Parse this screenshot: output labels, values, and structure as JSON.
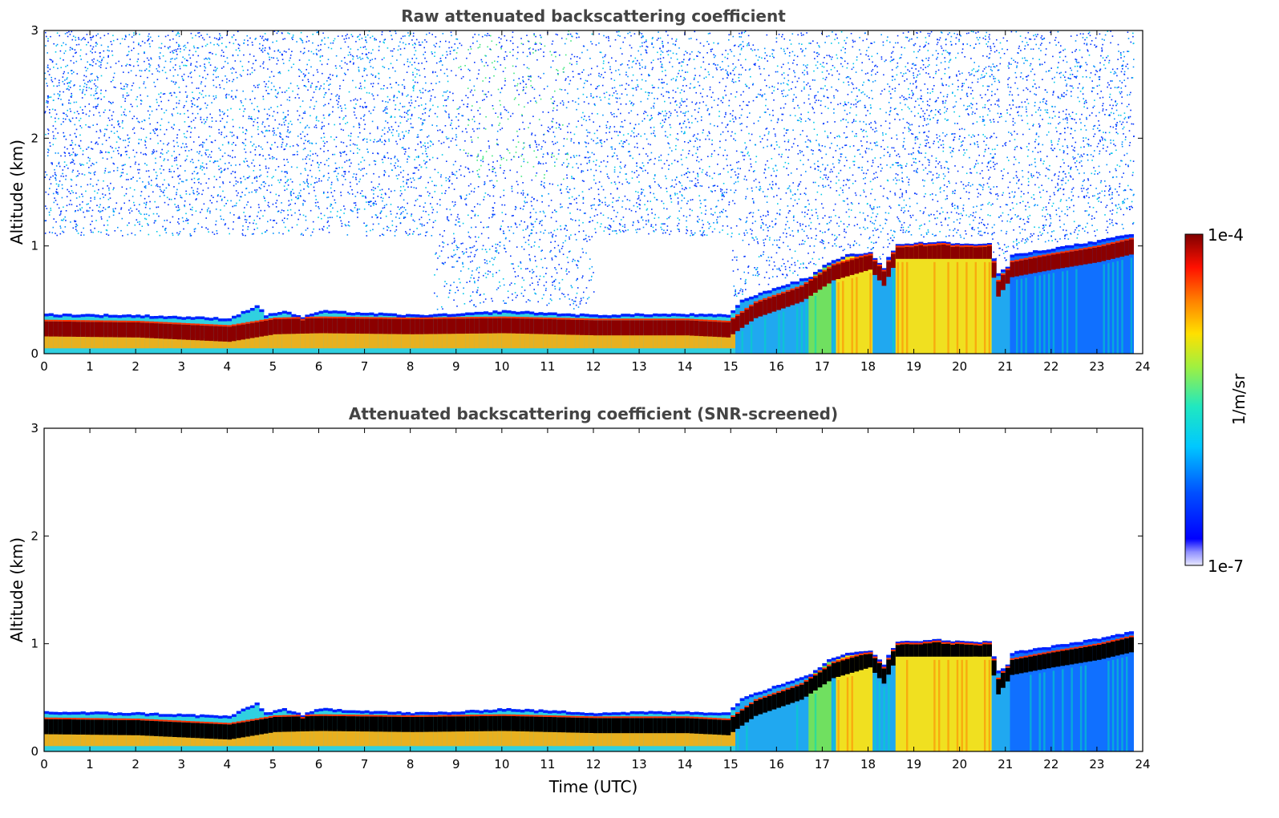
{
  "chart_data": [
    {
      "type": "heatmap",
      "id": "raw",
      "title": "Raw attenuated backscattering coefficient",
      "xlabel": "",
      "ylabel": "Altitude (km)",
      "xlim": [
        0,
        24
      ],
      "ylim": [
        0,
        3
      ],
      "x_ticks": [
        "0",
        "1",
        "2",
        "3",
        "4",
        "5",
        "6",
        "7",
        "8",
        "9",
        "10",
        "11",
        "12",
        "13",
        "14",
        "15",
        "16",
        "17",
        "18",
        "19",
        "20",
        "21",
        "22",
        "23",
        "24"
      ],
      "y_ticks": [
        "0",
        "1",
        "2",
        "3"
      ],
      "data_end_hour": 23.8,
      "noise_above_layer": true,
      "layer_top_km": [
        [
          0,
          0.37
        ],
        [
          2,
          0.36
        ],
        [
          4,
          0.33
        ],
        [
          4.6,
          0.45
        ],
        [
          4.8,
          0.36
        ],
        [
          5.2,
          0.4
        ],
        [
          5.6,
          0.34
        ],
        [
          6,
          0.4
        ],
        [
          7,
          0.38
        ],
        [
          8,
          0.36
        ],
        [
          9,
          0.37
        ],
        [
          10,
          0.4
        ],
        [
          11,
          0.38
        ],
        [
          12,
          0.36
        ],
        [
          13,
          0.37
        ],
        [
          14,
          0.37
        ],
        [
          14.9,
          0.36
        ],
        [
          15.2,
          0.5
        ],
        [
          16,
          0.62
        ],
        [
          16.7,
          0.72
        ],
        [
          17.1,
          0.85
        ],
        [
          17.5,
          0.92
        ],
        [
          18,
          0.94
        ],
        [
          18.3,
          0.8
        ],
        [
          18.4,
          0.9
        ],
        [
          18.6,
          1.02
        ],
        [
          19.5,
          1.04
        ],
        [
          20,
          1.02
        ],
        [
          20.6,
          1.02
        ],
        [
          20.8,
          0.75
        ],
        [
          21,
          0.8
        ],
        [
          21.1,
          0.92
        ],
        [
          22,
          0.98
        ],
        [
          23,
          1.05
        ],
        [
          23.8,
          1.12
        ]
      ],
      "dense_core_km": [
        [
          0,
          0.23
        ],
        [
          2,
          0.22
        ],
        [
          4,
          0.18
        ],
        [
          5,
          0.25
        ],
        [
          6,
          0.26
        ],
        [
          8,
          0.25
        ],
        [
          10,
          0.26
        ],
        [
          12,
          0.24
        ],
        [
          14,
          0.24
        ],
        [
          14.9,
          0.22
        ],
        [
          15.5,
          0.4
        ],
        [
          16.5,
          0.55
        ],
        [
          17.2,
          0.75
        ],
        [
          18,
          0.85
        ],
        [
          18.3,
          0.7
        ],
        [
          18.6,
          0.95
        ],
        [
          20,
          0.95
        ],
        [
          20.6,
          0.95
        ],
        [
          20.8,
          0.6
        ],
        [
          21.1,
          0.78
        ],
        [
          22,
          0.85
        ],
        [
          23,
          0.92
        ],
        [
          23.8,
          1.0
        ]
      ]
    },
    {
      "type": "heatmap",
      "id": "snr",
      "title": "Attenuated backscattering coefficient (SNR-screened)",
      "xlabel": "Time (UTC)",
      "ylabel": "Altitude (km)",
      "xlim": [
        0,
        24
      ],
      "ylim": [
        0,
        3
      ],
      "x_ticks": [
        "0",
        "1",
        "2",
        "3",
        "4",
        "5",
        "6",
        "7",
        "8",
        "9",
        "10",
        "11",
        "12",
        "13",
        "14",
        "15",
        "16",
        "17",
        "18",
        "19",
        "20",
        "21",
        "22",
        "23",
        "24"
      ],
      "y_ticks": [
        "0",
        "1",
        "2",
        "3"
      ],
      "data_end_hour": 23.8,
      "noise_above_layer": false,
      "saturated_core_color": "#000000"
    }
  ],
  "colorbar": {
    "label": "1/m/sr",
    "max_label": "1e-4",
    "min_label": "1e-7",
    "scale": "log",
    "range": [
      1e-07,
      0.0001
    ]
  },
  "colors": {
    "title": "#444444",
    "axes": "#000000",
    "background": "#ffffff"
  }
}
